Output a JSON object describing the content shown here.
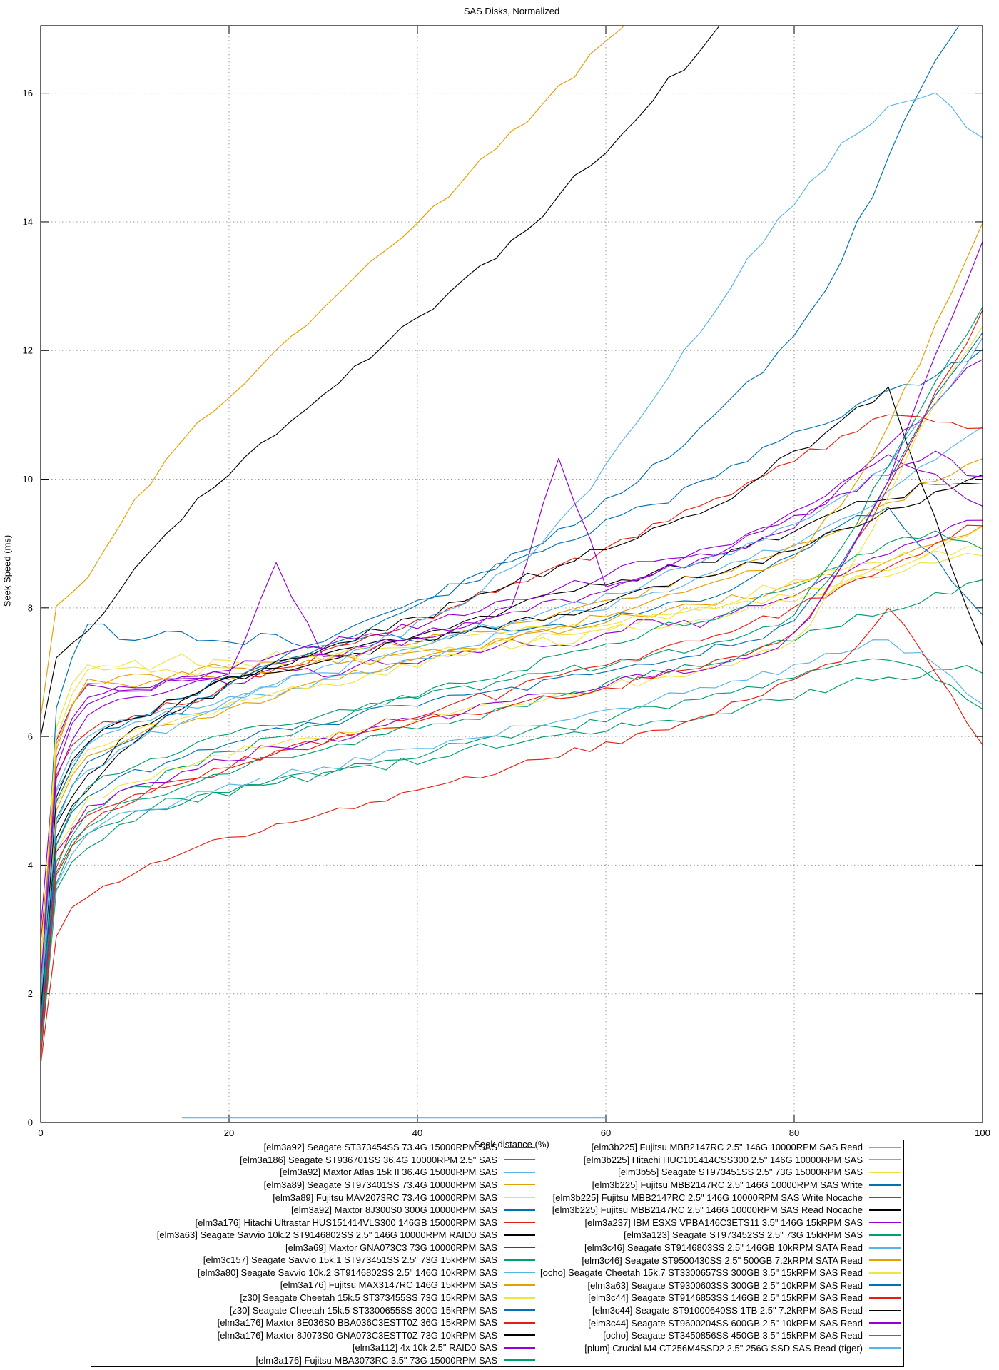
{
  "header": {
    "title": "SAS Disks, Normalized"
  },
  "axes": {
    "x_label": "Seek distance (%)",
    "y_label": "Seek Speed (ms)"
  },
  "chart_data": {
    "type": "line",
    "title": "SAS Disks, Normalized",
    "xlabel": "Seek distance (%)",
    "ylabel": "Seek Speed (ms)",
    "xlim": [
      0,
      100
    ],
    "ylim": [
      0,
      17.05
    ],
    "x_ticks": [
      0,
      20,
      40,
      60,
      80,
      100
    ],
    "y_ticks": [
      0,
      2,
      4,
      6,
      8,
      10,
      12,
      14,
      16
    ],
    "grid": true,
    "legend_position": "bottom, two columns, boxed",
    "noise_amplitude": 0.09,
    "x": [
      0,
      5,
      10,
      15,
      20,
      25,
      30,
      35,
      40,
      45,
      50,
      55,
      60,
      65,
      70,
      75,
      80,
      85,
      90,
      95,
      100
    ],
    "series": [
      {
        "name": "[elm3a92] Seagate ST373454SS 73.4G 15000RPM SAS",
        "color": "#9400d3",
        "column": 1,
        "values": [
          3.0,
          6.8,
          6.7,
          6.9,
          6.85,
          7.05,
          6.95,
          7.2,
          7.1,
          7.3,
          7.5,
          7.4,
          7.6,
          7.8,
          7.7,
          8.0,
          8.2,
          8.5,
          8.8,
          9.1,
          9.4
        ]
      },
      {
        "name": "[elm3a186] Seagate ST936701SS 36.4G 10000RPM 2.5\" SAS",
        "color": "#009e73",
        "column": 1,
        "values": [
          1.2,
          4.5,
          4.8,
          5.05,
          5.1,
          5.3,
          5.4,
          5.55,
          5.6,
          5.8,
          5.9,
          6.05,
          6.1,
          6.25,
          6.3,
          6.5,
          6.6,
          6.8,
          6.9,
          7.05,
          7.0
        ]
      },
      {
        "name": "[elm3a92] Maxtor Atlas 15k II 36.4G 15000RPM SAS",
        "color": "#56b4e9",
        "column": 1,
        "values": [
          2.2,
          5.9,
          6.25,
          6.35,
          6.55,
          6.65,
          6.9,
          7.0,
          7.25,
          7.4,
          7.6,
          7.85,
          8.0,
          8.25,
          8.45,
          8.75,
          9.0,
          9.4,
          9.8,
          10.3,
          10.85
        ]
      },
      {
        "name": "[elm3a89] Seagate ST973401SS 73.4G 10000RPM SAS",
        "color": "#e69f00",
        "column": 1,
        "values": [
          2.0,
          6.9,
          6.75,
          7.0,
          6.9,
          7.15,
          7.2,
          7.35,
          7.45,
          7.65,
          7.75,
          7.95,
          8.1,
          8.3,
          8.5,
          8.7,
          8.95,
          9.2,
          9.6,
          10.0,
          10.3
        ]
      },
      {
        "name": "[elm3a89] Fujitsu MAV2073RC 73.4G 10000RPM SAS",
        "color": "#f0e442",
        "column": 1,
        "values": [
          2.5,
          7.0,
          7.15,
          6.95,
          7.2,
          7.05,
          7.3,
          7.15,
          7.35,
          7.3,
          7.5,
          7.45,
          7.65,
          7.7,
          7.85,
          7.95,
          8.1,
          8.35,
          8.6,
          8.95,
          9.3
        ]
      },
      {
        "name": "[elm3a92] Maxtor 8J300S0 300G 10000RPM SAS",
        "color": "#0072b2",
        "column": 1,
        "values": [
          2.0,
          7.75,
          7.5,
          7.6,
          7.45,
          7.55,
          7.4,
          7.6,
          7.5,
          7.65,
          7.6,
          7.75,
          7.8,
          7.95,
          8.1,
          8.4,
          8.8,
          9.25,
          9.55,
          8.8,
          7.9
        ]
      },
      {
        "name": "[elm3a176] Hitachi Ultrastar HUS151414VLS300 146GB 15000RPM SAS",
        "color": "#e51e10",
        "column": 1,
        "values": [
          2.8,
          6.1,
          6.35,
          6.5,
          6.8,
          7.05,
          7.3,
          7.55,
          7.8,
          8.1,
          8.35,
          8.65,
          8.9,
          9.3,
          9.6,
          9.95,
          10.3,
          10.65,
          11.0,
          10.9,
          10.8
        ]
      },
      {
        "name": "[elm3a63] Seagate Savvio 10k.2 ST9146802SS 2.5\" 146G 10000RPM RAID0 SAS",
        "color": "#000000",
        "column": 1,
        "values": [
          1.5,
          5.4,
          6.1,
          6.6,
          6.9,
          7.05,
          7.3,
          7.45,
          7.6,
          7.8,
          8.0,
          8.2,
          8.35,
          8.55,
          8.7,
          8.95,
          9.2,
          9.5,
          9.7,
          9.95,
          9.9
        ]
      },
      {
        "name": "[elm3a69] Maxtor GNA073C3 73G 10000RPM SAS",
        "color": "#9400d3",
        "column": 1,
        "values": [
          2.0,
          6.6,
          6.75,
          6.85,
          6.95,
          7.1,
          7.25,
          7.4,
          7.55,
          7.7,
          7.9,
          8.1,
          8.3,
          8.55,
          8.8,
          9.1,
          9.5,
          9.95,
          10.5,
          11.2,
          11.9
        ]
      },
      {
        "name": "[elm3c157] Seagate Savvio 15k.1 ST973451SS 2.5\" 73G 15kRPM SAS",
        "color": "#009e73",
        "column": 1,
        "values": [
          1.0,
          4.3,
          4.7,
          4.95,
          5.1,
          5.3,
          5.4,
          5.6,
          5.7,
          5.9,
          6.0,
          6.15,
          6.25,
          6.45,
          6.55,
          6.75,
          6.9,
          7.1,
          7.2,
          6.9,
          6.4
        ]
      },
      {
        "name": "[elm3a80] Seagate Savvio 10k.2 ST9146802SS 2.5\" 146G 10kRPM SAS",
        "color": "#56b4e9",
        "column": 1,
        "values": [
          1.1,
          4.5,
          4.85,
          5.0,
          5.25,
          5.35,
          5.55,
          5.65,
          5.85,
          5.95,
          6.15,
          6.25,
          6.45,
          6.55,
          6.75,
          6.9,
          7.1,
          7.3,
          7.5,
          7.1,
          6.5
        ]
      },
      {
        "name": "[elm3a176] Fujitsu MAX3147RC 146G 15kRPM SAS",
        "color": "#e69f00",
        "column": 1,
        "values": [
          2.1,
          6.85,
          7.0,
          6.9,
          7.1,
          7.0,
          7.2,
          7.1,
          7.3,
          7.35,
          7.55,
          7.6,
          7.8,
          7.85,
          8.05,
          8.15,
          8.35,
          8.5,
          8.75,
          9.0,
          9.3
        ]
      },
      {
        "name": "[z30] Seagate Cheetah 15k.5 ST373455SS 73G 15kRPM SAS",
        "color": "#f0e442",
        "column": 1,
        "values": [
          2.4,
          7.15,
          7.05,
          7.25,
          7.1,
          7.3,
          7.2,
          7.35,
          7.4,
          7.55,
          7.6,
          7.7,
          7.75,
          7.9,
          7.95,
          8.1,
          8.2,
          8.4,
          8.5,
          8.7,
          8.8
        ]
      },
      {
        "name": "[z30] Seagate Cheetah 15k.5 ST3300655SS 300G 15kRPM SAS",
        "color": "#0072b2",
        "column": 1,
        "values": [
          1.8,
          5.9,
          6.3,
          6.6,
          6.9,
          7.2,
          7.5,
          7.8,
          8.1,
          8.4,
          8.7,
          9.0,
          9.35,
          9.6,
          9.95,
          10.3,
          10.7,
          11.0,
          11.35,
          11.6,
          12.0
        ]
      },
      {
        "name": "[elm3a176] Maxtor 8E036S0 BBA036C3ESTT0Z 36G 15kRPM SAS",
        "color": "#e51e10",
        "column": 1,
        "values": [
          1.0,
          4.6,
          5.0,
          5.3,
          5.5,
          5.75,
          5.9,
          6.15,
          6.3,
          6.55,
          6.7,
          6.95,
          7.1,
          7.35,
          7.5,
          7.75,
          8.0,
          8.3,
          8.65,
          9.0,
          9.3
        ]
      },
      {
        "name": "[elm3a176] Maxtor 8J073S0 GNA073C3ESTT0Z 73G 10kRPM SAS",
        "color": "#000000",
        "column": 1,
        "values": [
          1.4,
          5.2,
          5.9,
          6.4,
          6.8,
          7.0,
          7.2,
          7.3,
          7.5,
          7.6,
          7.8,
          7.9,
          8.1,
          8.3,
          8.5,
          8.7,
          8.9,
          9.2,
          9.5,
          9.8,
          10.1
        ]
      },
      {
        "name": "[elm3a112] 4x 10k 2.5\" RAID0 SAS",
        "color": "#9400d3",
        "column": 1,
        "values": [
          2.0,
          6.35,
          6.6,
          6.8,
          7.0,
          8.7,
          7.2,
          7.35,
          7.55,
          7.75,
          8.05,
          10.3,
          8.35,
          8.55,
          8.75,
          8.95,
          9.25,
          9.9,
          10.35,
          10.1,
          9.6
        ]
      },
      {
        "name": "[elm3a176] Fujitsu MBA3073RC 3.5\" 73G 15000RPM SAS",
        "color": "#009e73",
        "column": 1,
        "values": [
          1.3,
          4.8,
          5.2,
          5.5,
          5.75,
          6.0,
          6.2,
          6.45,
          6.6,
          6.85,
          7.0,
          7.25,
          7.4,
          7.65,
          7.8,
          8.05,
          8.3,
          8.65,
          9.0,
          9.2,
          8.9
        ]
      },
      {
        "name": "[elm3b225] Fujitsu MBB2147RC 2.5\" 146G 10000RPM SAS Read",
        "color": "#56b4e9",
        "column": 2,
        "values": [
          2.0,
          6.0,
          6.25,
          6.45,
          6.6,
          6.8,
          7.0,
          7.2,
          7.4,
          7.6,
          7.8,
          8.0,
          8.2,
          8.45,
          8.7,
          9.0,
          9.3,
          9.7,
          10.2,
          11.2,
          12.2
        ]
      },
      {
        "name": "[elm3b225] Hitachi HUC101414CSS300 2.5\" 146G 10000RPM SAS",
        "color": "#e69f00",
        "column": 2,
        "values": [
          1.9,
          5.7,
          6.0,
          6.2,
          6.45,
          6.6,
          6.85,
          7.0,
          7.2,
          7.35,
          7.55,
          7.7,
          7.9,
          8.1,
          8.3,
          8.55,
          8.8,
          9.6,
          10.8,
          12.4,
          14.0
        ]
      },
      {
        "name": "[elm3b55] Seagate ST973451SS 2.5\" 73G 15000RPM SAS",
        "color": "#f0e442",
        "column": 2,
        "values": [
          1.7,
          5.8,
          6.1,
          6.3,
          6.5,
          6.7,
          6.8,
          7.0,
          7.1,
          7.3,
          7.4,
          7.6,
          7.7,
          7.9,
          8.0,
          8.2,
          8.4,
          8.6,
          8.75,
          8.85,
          8.95
        ]
      },
      {
        "name": "[elm3b225] Fujitsu MBB2147RC 2.5\" 146G 10000RPM SAS Write",
        "color": "#0072b2",
        "column": 2,
        "values": [
          1.6,
          5.6,
          6.0,
          6.4,
          6.8,
          7.1,
          7.4,
          7.7,
          8.05,
          8.4,
          8.8,
          9.2,
          9.7,
          10.2,
          10.8,
          11.5,
          12.2,
          13.4,
          15.0,
          16.5,
          17.5
        ]
      },
      {
        "name": "[elm3b225] Fujitsu MBB2147RC 2.5\" 146G 10000RPM SAS Write Nocache",
        "color": "#e51e10",
        "column": 2,
        "values": [
          0.9,
          3.5,
          3.9,
          4.15,
          4.4,
          4.6,
          4.8,
          5.0,
          5.2,
          5.35,
          5.55,
          5.7,
          5.9,
          6.1,
          6.3,
          6.55,
          6.85,
          7.2,
          8.0,
          7.0,
          5.9
        ]
      },
      {
        "name": "[elm3b225] Fujitsu MBB2147RC 2.5\" 146G 10000RPM SAS Read Nocache",
        "color": "#000000",
        "column": 2,
        "values": [
          1.7,
          5.9,
          6.3,
          6.6,
          6.9,
          7.15,
          7.4,
          7.65,
          7.85,
          8.1,
          8.35,
          8.65,
          8.9,
          9.2,
          9.5,
          9.9,
          10.4,
          10.9,
          11.4,
          9.4,
          7.4
        ]
      },
      {
        "name": "[elm3a237] IBM ESXS VPBA146C3ETS11 3.5\" 146G 15kRPM SAS",
        "color": "#9400d3",
        "column": 2,
        "values": [
          2.2,
          6.5,
          6.7,
          6.9,
          7.05,
          7.25,
          7.4,
          7.6,
          7.7,
          7.9,
          8.1,
          8.3,
          8.5,
          8.7,
          8.9,
          9.15,
          9.4,
          9.75,
          10.1,
          10.4,
          10.0
        ]
      },
      {
        "name": "[elm3a123] Seagate ST973452SS 2.5\" 73G 15kRPM SAS",
        "color": "#009e73",
        "column": 2,
        "values": [
          1.2,
          4.6,
          5.0,
          5.25,
          5.45,
          5.65,
          5.8,
          6.0,
          6.1,
          6.3,
          6.45,
          6.65,
          6.8,
          7.0,
          7.1,
          7.3,
          7.5,
          7.75,
          7.95,
          8.2,
          8.4
        ]
      },
      {
        "name": "[elm3c46] Seagate ST9146803SS 2.5\" 146GB 10kRPM SATA Read",
        "color": "#56b4e9",
        "column": 2,
        "values": [
          1.9,
          5.5,
          5.9,
          6.2,
          6.5,
          6.8,
          7.1,
          7.4,
          7.75,
          8.1,
          8.6,
          9.3,
          10.2,
          11.2,
          12.3,
          13.4,
          14.3,
          15.2,
          15.8,
          16.0,
          15.3
        ]
      },
      {
        "name": "[elm3c46] Seagate ST9500430SS 2.5\" 500GB 7.2kRPM SATA Read",
        "color": "#e69f00",
        "column": 2,
        "values": [
          6.3,
          8.5,
          9.7,
          10.6,
          11.3,
          12.0,
          12.7,
          13.4,
          14.0,
          14.7,
          15.4,
          16.1,
          16.8,
          17.6,
          null,
          null,
          null,
          null,
          null,
          null,
          null
        ]
      },
      {
        "name": "[ocho] Seagate Cheetah 15k.7 ST3300657SS 300GB 3.5\" 15kRPM SAS Read",
        "color": "#f0e442",
        "column": 2,
        "values": [
          1.5,
          5.0,
          5.3,
          5.5,
          5.7,
          5.9,
          6.0,
          6.15,
          6.25,
          6.4,
          6.5,
          6.65,
          6.75,
          6.9,
          7.0,
          7.2,
          7.5,
          8.4,
          9.7,
          11.2,
          12.4
        ]
      },
      {
        "name": "[elm3a63] Seagate ST9300603SS 300GB 2.5\" 10kRPM SAS Read",
        "color": "#0072b2",
        "column": 2,
        "values": [
          1.6,
          5.1,
          5.45,
          5.7,
          5.9,
          6.1,
          6.2,
          6.4,
          6.5,
          6.65,
          6.75,
          6.9,
          7.0,
          7.15,
          7.3,
          7.5,
          7.8,
          8.7,
          10.0,
          11.3,
          12.3
        ]
      },
      {
        "name": "[elm3c44] Seagate ST9146853SS 146GB 2.5\" 15kRPM SAS Read",
        "color": "#e51e10",
        "column": 2,
        "values": [
          1.3,
          4.8,
          5.1,
          5.35,
          5.55,
          5.75,
          5.9,
          6.05,
          6.2,
          6.35,
          6.5,
          6.6,
          6.75,
          6.9,
          7.05,
          7.25,
          7.6,
          8.6,
          9.9,
          11.4,
          12.6
        ]
      },
      {
        "name": "[elm3c44] Seagate ST91000640SS 1TB 2.5\" 7.2kRPM SAS Read",
        "color": "#000000",
        "column": 2,
        "values": [
          6.0,
          7.6,
          8.6,
          9.4,
          10.1,
          10.7,
          11.3,
          11.9,
          12.5,
          13.1,
          13.7,
          14.4,
          15.1,
          15.9,
          16.7,
          17.6,
          null,
          null,
          null,
          null,
          null
        ]
      },
      {
        "name": "[elm3c44] Seagate ST9600204SS 600GB 2.5\" 10kRPM SAS Read",
        "color": "#9400d3",
        "column": 2,
        "values": [
          1.4,
          4.9,
          5.2,
          5.45,
          5.65,
          5.85,
          5.95,
          6.1,
          6.25,
          6.4,
          6.55,
          6.7,
          6.8,
          6.95,
          7.05,
          7.2,
          7.6,
          8.6,
          10.0,
          11.9,
          13.7
        ]
      },
      {
        "name": "[ocho] Seagate ST3450856SS 450GB 3.5\" 15kRPM SAS Read",
        "color": "#009e73",
        "column": 2,
        "values": [
          1.5,
          5.2,
          5.55,
          5.8,
          6.0,
          6.2,
          6.3,
          6.5,
          6.6,
          6.75,
          6.85,
          7.0,
          7.1,
          7.3,
          7.4,
          7.6,
          7.9,
          8.9,
          10.2,
          11.5,
          12.7
        ]
      },
      {
        "name": "[plum] Crucial M4 CT256M4SSD2 2.5\" 256G SSD SAS Read (tiger)",
        "color": "#56b4e9",
        "column": 2,
        "values": [
          null,
          null,
          null,
          0.07,
          0.07,
          0.07,
          0.07,
          0.07,
          0.07,
          0.07,
          0.07,
          0.07,
          0.07,
          null,
          null,
          null,
          null,
          null,
          null,
          null,
          null
        ]
      }
    ]
  }
}
